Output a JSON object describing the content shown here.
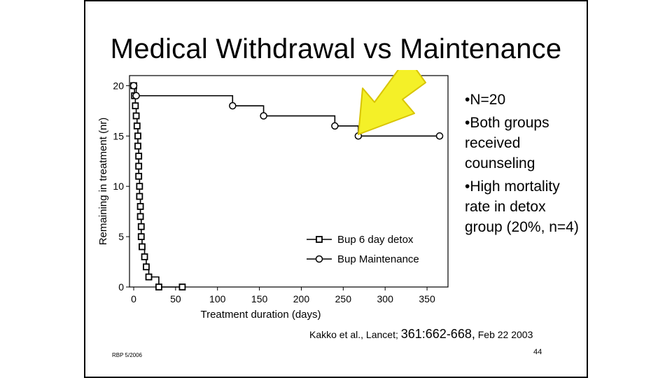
{
  "title": "Medical Withdrawal vs Maintenance",
  "bullets": [
    "•N=20",
    "•Both groups received counseling",
    "•High mortality rate in detox group (20%, n=4)"
  ],
  "citation": {
    "prefix": "Kakko et al., Lancet;",
    "ref": "361:662-668,",
    "date": "Feb 22 2003"
  },
  "footer_left": "RBP 5/2006",
  "page_number": "44",
  "colors": {
    "arrow_fill": "#f4f028",
    "arrow_stroke": "#d8c400",
    "line": "#000000"
  },
  "chart_data": {
    "type": "line",
    "xlabel": "Treatment duration (days)",
    "ylabel": "Remaining in treatment  (nr)",
    "xlim": [
      -5,
      375
    ],
    "ylim": [
      0,
      21
    ],
    "xticks": [
      0,
      50,
      100,
      150,
      200,
      250,
      300,
      350
    ],
    "yticks": [
      0,
      5,
      10,
      15,
      20
    ],
    "legend_position": "bottom-right",
    "grid": false,
    "series": [
      {
        "name": "Bup 6 day detox",
        "marker": "square",
        "x": [
          0,
          1,
          2,
          3,
          4,
          5,
          5,
          6,
          6,
          6,
          7,
          7,
          8,
          8,
          9,
          9,
          10,
          13,
          15,
          18,
          30,
          58
        ],
        "y": [
          20,
          19,
          18,
          17,
          16,
          15,
          14,
          13,
          12,
          11,
          10,
          9,
          8,
          7,
          6,
          5,
          4,
          3,
          2,
          1,
          0,
          0
        ]
      },
      {
        "name": "Bup Maintenance",
        "marker": "circle",
        "x": [
          0,
          3,
          118,
          155,
          240,
          268,
          365
        ],
        "y": [
          20,
          19,
          18,
          17,
          16,
          15,
          15
        ]
      }
    ]
  }
}
